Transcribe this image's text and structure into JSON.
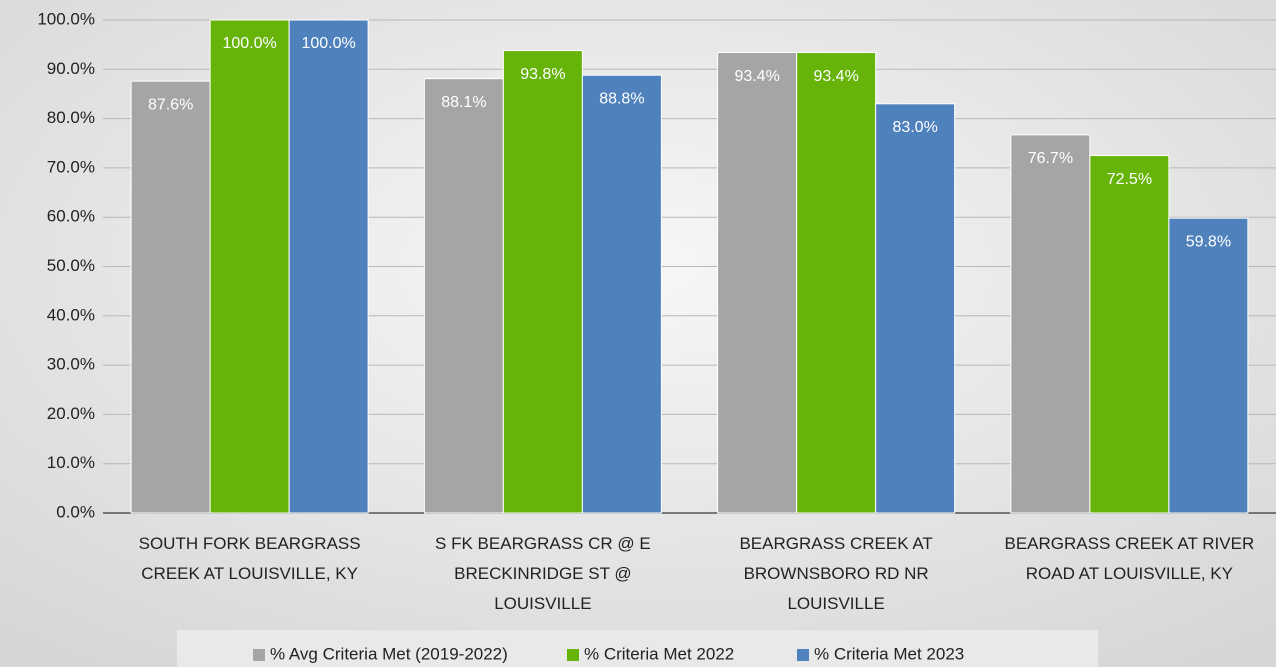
{
  "chart_data": {
    "type": "bar",
    "categories": [
      "SOUTH FORK BEARGRASS CREEK AT LOUISVILLE, KY",
      "S FK BEARGRASS CR @ E BRECKINRIDGE ST @ LOUISVILLE",
      "BEARGRASS CREEK AT BROWNSBORO RD NR LOUISVILLE",
      "BEARGRASS CREEK AT RIVER ROAD AT LOUISVILLE, KY"
    ],
    "series": [
      {
        "name": "% Avg Criteria Met (2019-2022)",
        "color": "#a5a5a5",
        "values": [
          87.6,
          88.1,
          93.4,
          76.7
        ],
        "value_labels": [
          "87.6%",
          "88.1%",
          "93.4%",
          "76.7%"
        ]
      },
      {
        "name": "% Criteria Met 2022",
        "color": "#66b30a",
        "values": [
          100.0,
          93.8,
          93.4,
          72.5
        ],
        "value_labels": [
          "100.0%",
          "93.8%",
          "93.4%",
          "72.5%"
        ]
      },
      {
        "name": "% Criteria Met 2023",
        "color": "#4f81bd",
        "values": [
          100.0,
          88.8,
          83.0,
          59.8
        ],
        "value_labels": [
          "100.0%",
          "88.8%",
          "83.0%",
          "59.8%"
        ]
      }
    ],
    "ylim": [
      0,
      100
    ],
    "yticks": [
      {
        "value": 0,
        "label": "0.0%"
      },
      {
        "value": 10,
        "label": "10.0%"
      },
      {
        "value": 20,
        "label": "20.0%"
      },
      {
        "value": 30,
        "label": "30.0%"
      },
      {
        "value": 40,
        "label": "40.0%"
      },
      {
        "value": 50,
        "label": "50.0%"
      },
      {
        "value": 60,
        "label": "60.0%"
      },
      {
        "value": 70,
        "label": "70.0%"
      },
      {
        "value": 80,
        "label": "80.0%"
      },
      {
        "value": 90,
        "label": "90.0%"
      },
      {
        "value": 100,
        "label": "100.0%"
      }
    ],
    "grid": true,
    "legend": "bottom"
  }
}
